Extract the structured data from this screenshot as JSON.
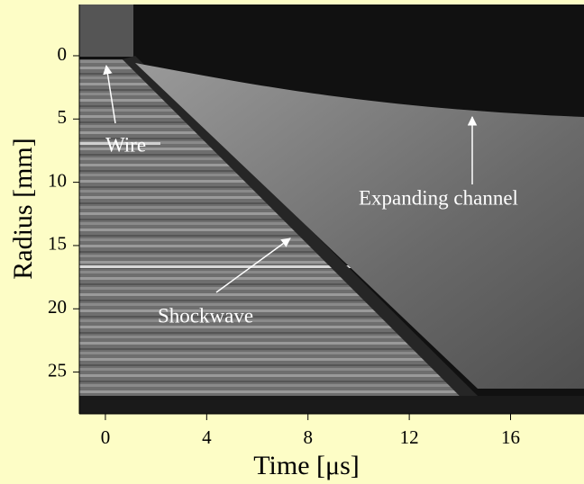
{
  "chart_data": {
    "type": "image",
    "x_label": "Time [μs]",
    "y_label": "Radius [mm]",
    "xlim": [
      -1.03,
      18.9
    ],
    "ylim": [
      28.3,
      -4.05
    ],
    "y_inverted": true,
    "xticks": [
      0,
      4,
      8,
      12,
      16
    ],
    "yticks": [
      0,
      5,
      10,
      15,
      20,
      25
    ],
    "annotations": [
      "Wire",
      "Shockwave",
      "Expanding channel"
    ]
  }
}
